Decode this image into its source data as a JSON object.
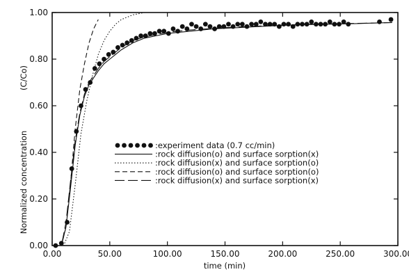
{
  "chart_data": {
    "type": "line",
    "xlabel": "time (min)",
    "ylabel": "Normalized concentration",
    "yunit_label": "(C/Co)",
    "xlim": [
      0,
      300
    ],
    "ylim": [
      0,
      1
    ],
    "x_ticks": [
      0,
      50,
      100,
      150,
      200,
      250,
      300
    ],
    "x_tick_labels": [
      "0.00",
      "50.00",
      "100.00",
      "150.00",
      "200.00",
      "250.00",
      "300.00"
    ],
    "y_ticks": [
      0,
      0.2,
      0.4,
      0.6,
      0.8,
      1.0
    ],
    "y_tick_labels": [
      "0.00",
      "0.20",
      "0.40",
      "0.60",
      "0.80",
      "1.00"
    ],
    "grid": false,
    "legend_position": "center-right",
    "series": [
      {
        "name": ":experiment data (0.7 cc/min)",
        "style": "markers",
        "x": [
          3,
          8,
          13,
          17,
          21,
          25,
          29,
          33,
          37,
          41,
          45,
          49,
          53,
          57,
          61,
          65,
          69,
          73,
          77,
          81,
          85,
          89,
          93,
          97,
          101,
          105,
          109,
          113,
          117,
          121,
          125,
          129,
          133,
          137,
          141,
          145,
          149,
          153,
          157,
          161,
          165,
          169,
          173,
          177,
          181,
          185,
          189,
          193,
          197,
          201,
          205,
          209,
          213,
          217,
          221,
          225,
          229,
          233,
          237,
          241,
          245,
          249,
          253,
          257,
          284,
          294
        ],
        "y": [
          0.0,
          0.01,
          0.1,
          0.33,
          0.49,
          0.6,
          0.67,
          0.7,
          0.76,
          0.78,
          0.8,
          0.82,
          0.83,
          0.85,
          0.86,
          0.87,
          0.88,
          0.89,
          0.9,
          0.9,
          0.91,
          0.91,
          0.92,
          0.92,
          0.91,
          0.93,
          0.92,
          0.94,
          0.93,
          0.95,
          0.94,
          0.93,
          0.95,
          0.94,
          0.93,
          0.94,
          0.94,
          0.95,
          0.94,
          0.95,
          0.95,
          0.94,
          0.95,
          0.95,
          0.96,
          0.95,
          0.95,
          0.95,
          0.94,
          0.95,
          0.95,
          0.94,
          0.95,
          0.95,
          0.95,
          0.96,
          0.95,
          0.95,
          0.95,
          0.96,
          0.95,
          0.95,
          0.96,
          0.95,
          0.96,
          0.97
        ]
      },
      {
        "name": ":rock diffusion(o)  and  surface  sorption(x)",
        "style": "solid",
        "x": [
          0,
          8,
          12,
          16,
          20,
          24,
          28,
          32,
          36,
          40,
          45,
          50,
          55,
          60,
          70,
          80,
          90,
          100,
          120,
          140,
          160,
          180,
          200,
          220,
          240,
          260,
          280,
          295
        ],
        "y": [
          0.0,
          0.0,
          0.08,
          0.25,
          0.43,
          0.56,
          0.64,
          0.69,
          0.72,
          0.75,
          0.78,
          0.8,
          0.82,
          0.84,
          0.87,
          0.89,
          0.9,
          0.91,
          0.92,
          0.93,
          0.935,
          0.94,
          0.945,
          0.948,
          0.95,
          0.952,
          0.955,
          0.957
        ]
      },
      {
        "name": ":rock diffusion(x)  and  surface  sorption(o)",
        "style": "dotted",
        "x": [
          0,
          10,
          15,
          20,
          25,
          30,
          35,
          40,
          45,
          50,
          55,
          60,
          65,
          70,
          75,
          80,
          85,
          90,
          95,
          100,
          300
        ],
        "y": [
          0.0,
          0.0,
          0.06,
          0.26,
          0.48,
          0.62,
          0.73,
          0.82,
          0.88,
          0.92,
          0.95,
          0.97,
          0.98,
          0.99,
          0.995,
          1.0,
          1.0,
          1.0,
          1.0,
          1.0,
          1.0
        ]
      },
      {
        "name": ":rock diffusion(o)  and  surface  sorption(o)",
        "style": "dashed",
        "x": [
          0,
          8,
          12,
          16,
          20,
          24,
          28,
          32,
          36,
          40
        ],
        "y": [
          0.0,
          0.0,
          0.08,
          0.27,
          0.5,
          0.67,
          0.78,
          0.87,
          0.93,
          0.97
        ]
      },
      {
        "name": ":rock diffusion(x)  and  surface  sorption(x)",
        "style": "longdash",
        "x": [
          0,
          8,
          12,
          16,
          20,
          24,
          28,
          32,
          36,
          40,
          45,
          50,
          55,
          60,
          70,
          80,
          90,
          100,
          120,
          140,
          160,
          180,
          200,
          220,
          240,
          260,
          280,
          295
        ],
        "y": [
          0.0,
          0.0,
          0.1,
          0.28,
          0.45,
          0.57,
          0.65,
          0.7,
          0.73,
          0.76,
          0.79,
          0.81,
          0.83,
          0.85,
          0.88,
          0.895,
          0.905,
          0.915,
          0.925,
          0.932,
          0.938,
          0.942,
          0.946,
          0.949,
          0.951,
          0.953,
          0.955,
          0.957
        ]
      }
    ]
  }
}
